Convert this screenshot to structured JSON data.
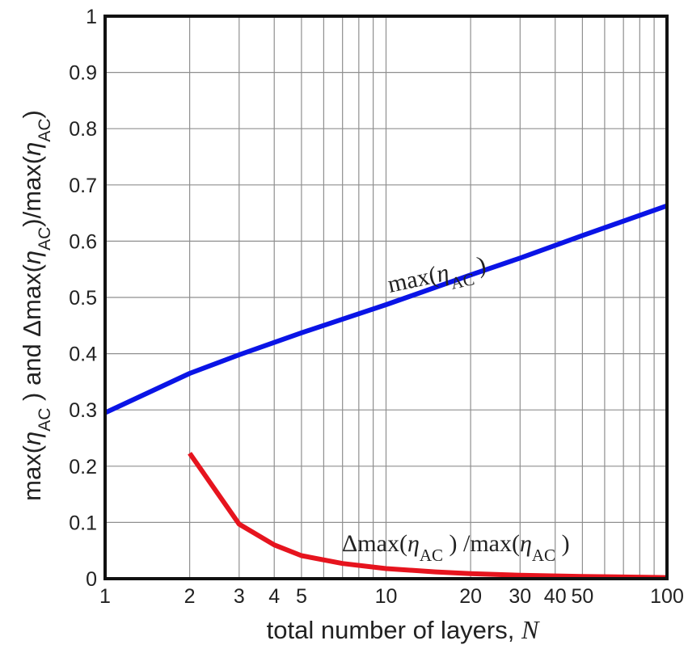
{
  "chart_data": {
    "type": "line",
    "title": "",
    "xlabel_text": "total number of layers, ",
    "xlabel_var": "N",
    "ylabel_parts": [
      "max(",
      "η",
      "AC",
      " )  and Δmax(",
      "η",
      "AC",
      ")/max(",
      "η",
      "AC",
      ")"
    ],
    "xscale": "log",
    "xlim": [
      1,
      100
    ],
    "ylim": [
      0,
      1
    ],
    "grid": true,
    "x_ticks": [
      1,
      2,
      3,
      4,
      5,
      10,
      20,
      30,
      40,
      50,
      100
    ],
    "x_tick_labels": [
      "1",
      "2",
      "3",
      "4",
      "5",
      "10",
      "20",
      "30",
      "40",
      "50",
      "100"
    ],
    "y_ticks": [
      0,
      0.1,
      0.2,
      0.3,
      0.4,
      0.5,
      0.6,
      0.7,
      0.8,
      0.9,
      1
    ],
    "y_tick_labels": [
      "0",
      "0.1",
      "0.2",
      "0.3",
      "0.4",
      "0.5",
      "0.6",
      "0.7",
      "0.8",
      "0.9",
      "1"
    ],
    "series": [
      {
        "label_parts": [
          "max(",
          "η",
          "AC",
          " )"
        ],
        "color": "#0a14e6",
        "x": [
          1,
          2,
          3,
          4,
          5,
          10,
          20,
          30,
          50,
          100
        ],
        "y": [
          0.295,
          0.365,
          0.398,
          0.42,
          0.437,
          0.487,
          0.54,
          0.57,
          0.61,
          0.663
        ]
      },
      {
        "label_parts": [
          "Δmax(",
          "η",
          "AC",
          " ) /max(",
          "η",
          "AC",
          " )"
        ],
        "color": "#e6141e",
        "x": [
          2,
          3,
          4,
          5,
          7,
          10,
          15,
          20,
          30,
          50,
          100
        ],
        "y": [
          0.223,
          0.097,
          0.06,
          0.041,
          0.027,
          0.018,
          0.012,
          0.009,
          0.006,
          0.004,
          0.002
        ]
      }
    ]
  }
}
